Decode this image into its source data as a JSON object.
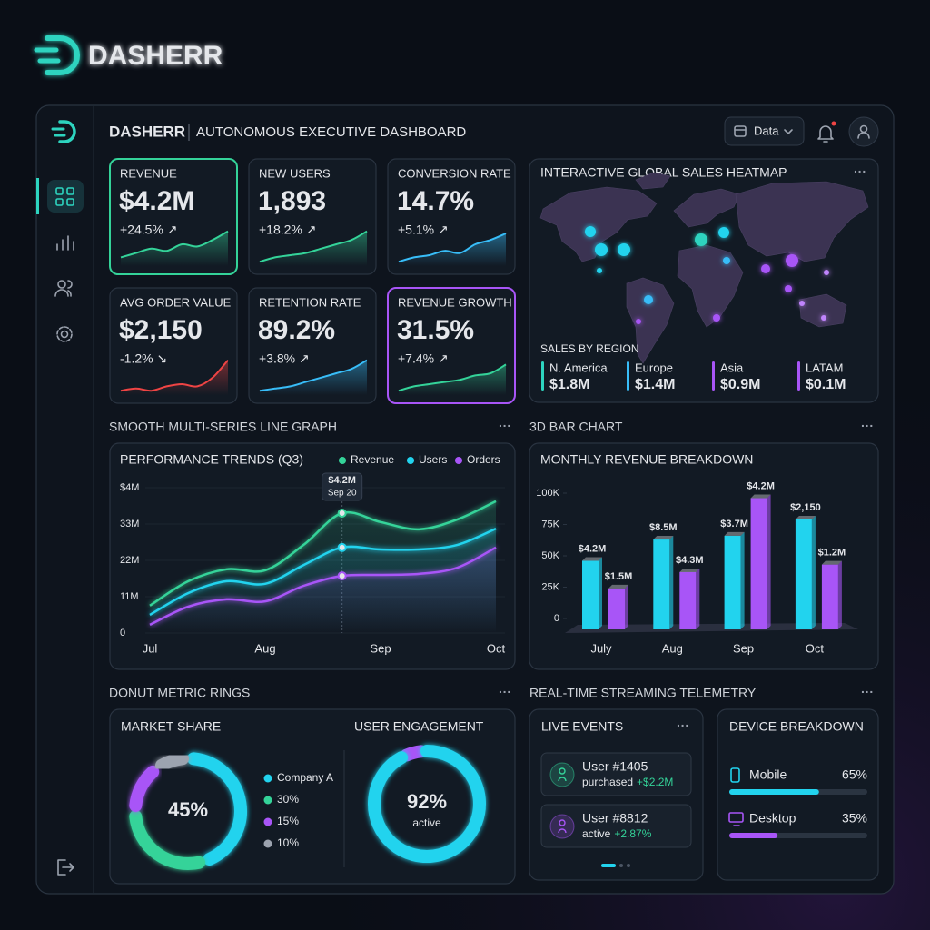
{
  "brand": "DASHERR",
  "header": {
    "title": "DASHERR",
    "subtitle": "AUTONOMOUS EXECUTIVE DASHBOARD",
    "date_button": "Data"
  },
  "sparkline_ylim": [
    0,
    10
  ],
  "kpis": [
    {
      "label": "REVENUE",
      "value": "$4.2M",
      "change": "+24.5% ↗",
      "color": "#34d399",
      "spark": [
        2,
        3,
        4,
        3.5,
        5,
        4.5,
        6,
        8
      ]
    },
    {
      "label": "NEW USERS",
      "value": "1,893",
      "change": "+18.2% ↗",
      "color": "#34d399",
      "spark": [
        1,
        2,
        2.5,
        3,
        4,
        5,
        6,
        8
      ]
    },
    {
      "label": "CONVERSION RATE",
      "value": "14.7%",
      "change": "+5.1% ↗",
      "color": "#38bdf8",
      "spark": [
        1,
        2,
        2.5,
        3.5,
        3,
        5,
        6,
        7.5
      ]
    },
    {
      "label": "AVG ORDER VALUE",
      "value": "$2,150",
      "change": "-1.2% ↘",
      "color": "#ef4444",
      "spark": [
        1,
        1.5,
        1,
        2,
        2.5,
        2,
        4,
        8
      ]
    },
    {
      "label": "RETENTION RATE",
      "value": "89.2%",
      "change": "+3.8% ↗",
      "color": "#38bdf8",
      "spark": [
        1,
        1.5,
        2,
        3,
        4,
        5,
        6,
        8
      ]
    },
    {
      "label": "REVENUE GROWTH",
      "value": "31.5%",
      "change": "+7.4% ↗",
      "color": "#34d399",
      "spark": [
        1,
        2,
        2.5,
        3,
        3.5,
        4.5,
        5,
        7
      ]
    }
  ],
  "heatmap": {
    "title": "INTERACTIVE GLOBAL SALES HEATMAP",
    "subtitle": "SALES BY REGION",
    "regions": [
      {
        "name": "N. America",
        "value": "$1.8M",
        "color": "#2dd4bf"
      },
      {
        "name": "Europe",
        "value": "$1.4M",
        "color": "#38bdf8"
      },
      {
        "name": "Asia",
        "value": "$0.9M",
        "color": "#a855f7"
      },
      {
        "name": "LATAM",
        "value": "$0.1M",
        "color": "#a855f7"
      }
    ]
  },
  "line_section": "SMOOTH MULTI-SERIES LINE GRAPH",
  "line_chart": {
    "type": "line",
    "title": "PERFORMANCE TRENDS (Q3)",
    "categories": [
      "Jul",
      null,
      null,
      "Aug",
      null,
      null,
      "Sep",
      null,
      null,
      "Oct"
    ],
    "ylim": [
      0,
      44
    ],
    "yticks": [
      0,
      {
        "value": 11,
        "label": "11M"
      },
      {
        "value": 22,
        "label": "22M"
      },
      {
        "value": 33,
        "label": "33M"
      },
      {
        "value": 44,
        "label": "$4M"
      }
    ],
    "series": [
      {
        "name": "Revenue",
        "color": "#34d399",
        "values": [
          8.3,
          15.7,
          19.3,
          19,
          26.7,
          36.3,
          33.6,
          31.4,
          34.4,
          39.9
        ]
      },
      {
        "name": "Users",
        "color": "#22d3ee",
        "values": [
          5.5,
          12.1,
          15.7,
          14.9,
          20.6,
          25.9,
          25.3,
          25.3,
          26.7,
          31.6
        ]
      },
      {
        "name": "Orders",
        "color": "#a855f7",
        "values": [
          2.5,
          8,
          10.2,
          9.6,
          14.3,
          17.3,
          17.6,
          17.9,
          19.8,
          25.9
        ]
      }
    ],
    "tooltip": {
      "value": "$4.2M",
      "date": "Sep 20"
    }
  },
  "bar_section": "3D BAR CHART",
  "bar_chart": {
    "type": "bar",
    "title": "MONTHLY REVENUE BREAKDOWN",
    "categories": [
      "July",
      "Aug",
      "Sep",
      "Oct"
    ],
    "ylim": [
      0,
      100
    ],
    "yticks": [
      0,
      {
        "value": 25,
        "label": "25K"
      },
      {
        "value": 50,
        "label": "50K"
      },
      {
        "value": 75,
        "label": "75K"
      },
      {
        "value": 100,
        "label": "100K"
      }
    ],
    "series": [
      {
        "color": "#22d3ee",
        "values": [
          46,
          63,
          66,
          79
        ],
        "labels": [
          "$4.2M",
          "$8.5M",
          "$3.7M",
          "$2,150"
        ],
        "label_color": "#34d399"
      },
      {
        "color": "#a855f7",
        "values": [
          24,
          37,
          96,
          43
        ],
        "labels": [
          "$1.5M",
          "$4.3M",
          "$4.2M",
          "$1.2M"
        ],
        "label_color": "#c084fc"
      }
    ]
  },
  "donut_section": "DONUT METRIC RINGS",
  "market_share": {
    "type": "pie",
    "title": "MARKET SHARE",
    "center": "45%",
    "segments": [
      {
        "label": "Company A",
        "value": 45,
        "color": "#22d3ee"
      },
      {
        "label": "30%",
        "value": 30,
        "color": "#34d399"
      },
      {
        "label": "15%",
        "value": 15,
        "color": "#a855f7"
      },
      {
        "label": "10%",
        "value": 10,
        "color": "#9ca3af"
      }
    ]
  },
  "engagement": {
    "title": "USER ENGAGEMENT",
    "value": 92,
    "value_label": "92%",
    "caption": "active",
    "color": "#22d3ee",
    "rest_color": "#a855f7"
  },
  "telemetry_section": "REAL-TIME STREAMING TELEMETRY",
  "live_events": {
    "title": "LIVE EVENTS",
    "items": [
      {
        "user": "User #1405",
        "action": "purchased",
        "amount": "+$2.2M",
        "color": "#34d399"
      },
      {
        "user": "User #8812",
        "action": "active",
        "amount": "+2.87%",
        "color": "#a855f7"
      }
    ]
  },
  "devices": {
    "title": "DEVICE BREAKDOWN",
    "items": [
      {
        "name": "Mobile",
        "value": 65,
        "value_label": "65%",
        "color": "#22d3ee"
      },
      {
        "name": "Desktop",
        "value": 35,
        "value_label": "35%",
        "color": "#a855f7"
      }
    ]
  }
}
